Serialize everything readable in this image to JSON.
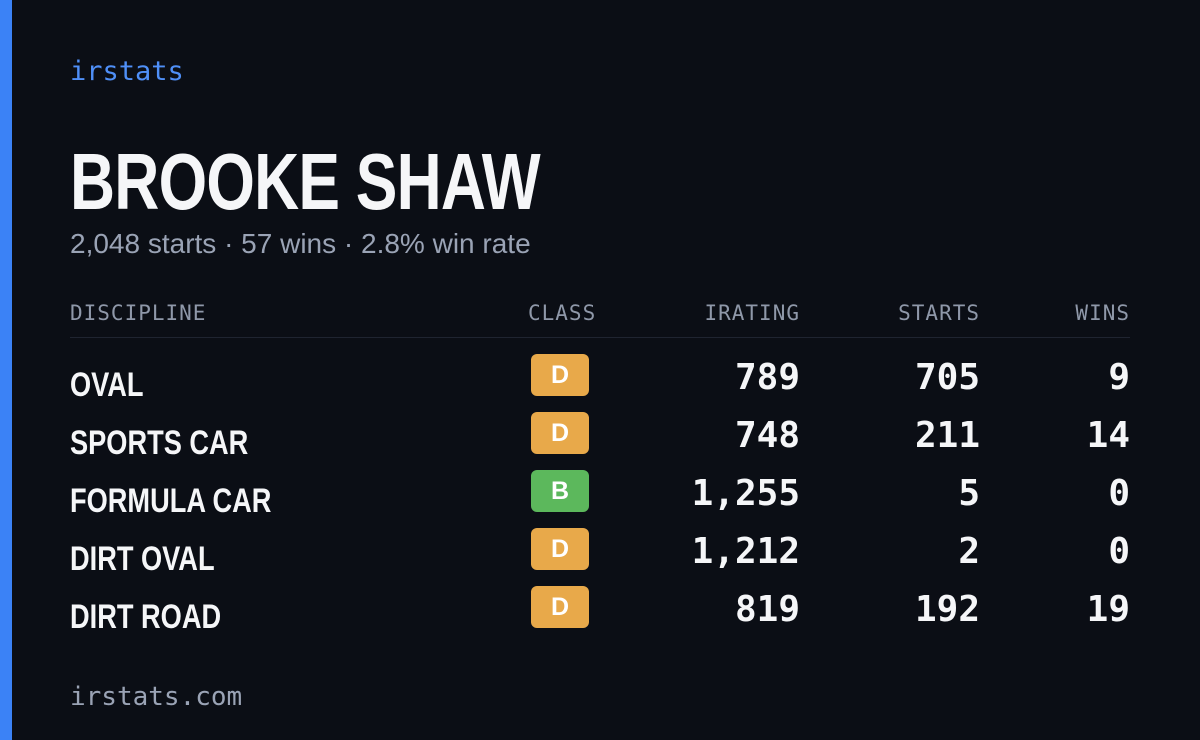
{
  "brand": "irstats",
  "name": "BROOKE SHAW",
  "summary": "2,048 starts · 57 wins · 2.8% win rate",
  "table": {
    "headers": [
      "DISCIPLINE",
      "CLASS",
      "IRATING",
      "STARTS",
      "WINS"
    ],
    "rows": [
      [
        "OVAL",
        "D",
        "789",
        "705",
        "9"
      ],
      [
        "SPORTS CAR",
        "D",
        "748",
        "211",
        "14"
      ],
      [
        "FORMULA CAR",
        "B",
        "1,255",
        "5",
        "0"
      ],
      [
        "DIRT OVAL",
        "D",
        "1,212",
        "2",
        "0"
      ],
      [
        "DIRT ROAD",
        "D",
        "819",
        "192",
        "19"
      ]
    ]
  },
  "footer": "irstats.com"
}
